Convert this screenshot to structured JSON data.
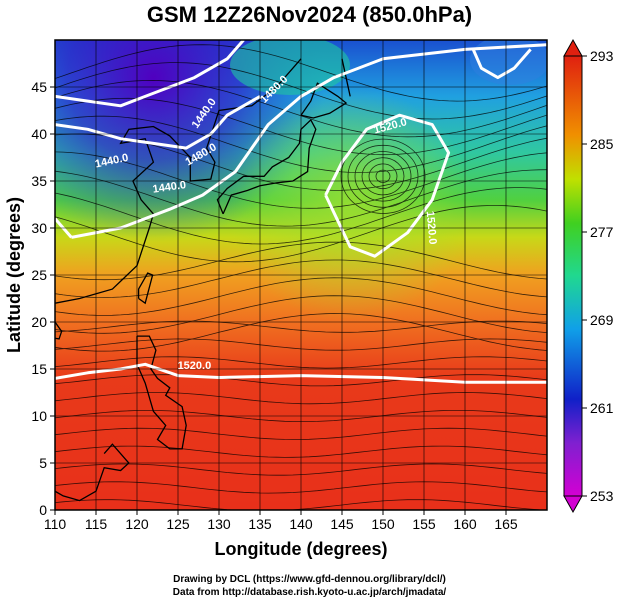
{
  "title": "GSM 12Z26Nov2024 (850.0hPa)",
  "x_axis": {
    "title": "Longitude (degrees)",
    "range": [
      110,
      170
    ],
    "ticks": [
      "110",
      "115",
      "120",
      "125",
      "130",
      "135",
      "140",
      "145",
      "150",
      "155",
      "160",
      "165"
    ]
  },
  "y_axis": {
    "title": "Latitude  (degrees)",
    "range": [
      0,
      50
    ],
    "ticks": [
      "0",
      "5",
      "10",
      "15",
      "20",
      "25",
      "30",
      "35",
      "40",
      "45"
    ]
  },
  "colorbar": {
    "ticks": [
      "253",
      "261",
      "269",
      "277",
      "285",
      "293"
    ],
    "range": [
      253,
      293
    ],
    "colors": [
      "#d300d3",
      "#1020c8",
      "#10c0e0",
      "#30d030",
      "#f0e000",
      "#e02010"
    ]
  },
  "contour_labels": [
    "1440.0",
    "1440.0",
    "1440.0",
    "1480.0",
    "1480.0",
    "1520.0",
    "1520.0",
    "1520.0"
  ],
  "credits": {
    "line1": "Drawing by DCL (https://www.gfd-dennou.org/library/dcl/)",
    "line2": "Data from http://database.rish.kyoto-u.ac.jp/arch/jmadata/"
  }
}
